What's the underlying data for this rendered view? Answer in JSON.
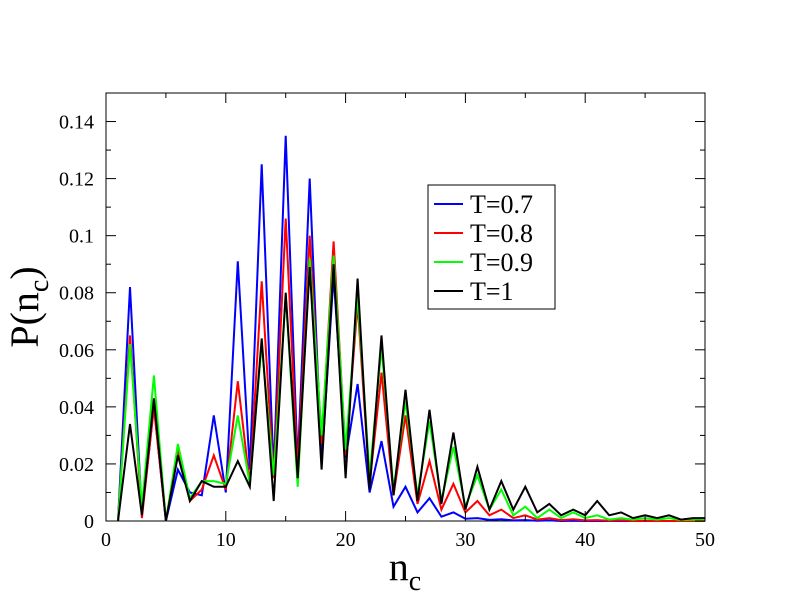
{
  "chart_data": {
    "type": "line",
    "xlabel": {
      "base": "n",
      "sub": "c"
    },
    "ylabel": {
      "prefix": "P(n",
      "sub": "c",
      "suffix": ")"
    },
    "xlim": [
      0,
      50
    ],
    "ylim": [
      0,
      0.15
    ],
    "xticks": [
      0,
      10,
      20,
      30,
      40,
      50
    ],
    "xtick_labels": [
      "0",
      "10",
      "20",
      "30",
      "40",
      "50"
    ],
    "yticks": [
      0,
      0.02,
      0.04,
      0.06,
      0.08,
      0.1,
      0.12,
      0.14
    ],
    "ytick_labels": [
      "0",
      "0.02",
      "0.04",
      "0.06",
      "0.08",
      "0.1",
      "0.12",
      "0.14"
    ],
    "legend_position": "upper-right",
    "grid": false,
    "series": [
      {
        "name": "T=0.7",
        "color": "#0000ff",
        "x": [
          1,
          2,
          3,
          4,
          5,
          6,
          7,
          8,
          9,
          10,
          11,
          12,
          13,
          14,
          15,
          16,
          17,
          18,
          19,
          20,
          21,
          22,
          23,
          24,
          25,
          26,
          27,
          28,
          29,
          30,
          31,
          32,
          33,
          34,
          35,
          36,
          37,
          38,
          39,
          40,
          41,
          42,
          43,
          44,
          45,
          46,
          47,
          48,
          49,
          50
        ],
        "y": [
          0,
          0.082,
          0.002,
          0.04,
          0,
          0.018,
          0.01,
          0.009,
          0.037,
          0.01,
          0.091,
          0.018,
          0.125,
          0.017,
          0.135,
          0.02,
          0.12,
          0.02,
          0.086,
          0.022,
          0.048,
          0.01,
          0.028,
          0.005,
          0.012,
          0.003,
          0.008,
          0.0015,
          0.003,
          0.0008,
          0.001,
          0.0004,
          0.0006,
          0.0002,
          0.0003,
          0.0001,
          0.0002,
          0,
          0.0001,
          0,
          0,
          0,
          0,
          0,
          0,
          0,
          0,
          0,
          0,
          0
        ]
      },
      {
        "name": "T=0.8",
        "color": "#ff0000",
        "x": [
          1,
          2,
          3,
          4,
          5,
          6,
          7,
          8,
          9,
          10,
          11,
          12,
          13,
          14,
          15,
          16,
          17,
          18,
          19,
          20,
          21,
          22,
          23,
          24,
          25,
          26,
          27,
          28,
          29,
          30,
          31,
          32,
          33,
          34,
          35,
          36,
          37,
          38,
          39,
          40,
          41,
          42,
          43,
          44,
          45,
          46,
          47,
          48,
          49,
          50
        ],
        "y": [
          0,
          0.065,
          0.001,
          0.04,
          0,
          0.025,
          0.007,
          0.011,
          0.023,
          0.011,
          0.049,
          0.013,
          0.084,
          0.015,
          0.106,
          0.018,
          0.1,
          0.027,
          0.098,
          0.023,
          0.076,
          0.013,
          0.052,
          0.009,
          0.037,
          0.006,
          0.021,
          0.004,
          0.013,
          0.003,
          0.007,
          0.002,
          0.004,
          0.001,
          0.002,
          0.0005,
          0.001,
          0.0003,
          0.0006,
          0.0002,
          0.0003,
          0.0001,
          0.0002,
          0,
          0.0001,
          0,
          0,
          0,
          0,
          0
        ]
      },
      {
        "name": "T=0.9",
        "color": "#00ff00",
        "x": [
          1,
          2,
          3,
          4,
          5,
          6,
          7,
          8,
          9,
          10,
          11,
          12,
          13,
          14,
          15,
          16,
          17,
          18,
          19,
          20,
          21,
          22,
          23,
          24,
          25,
          26,
          27,
          28,
          29,
          30,
          31,
          32,
          33,
          34,
          35,
          36,
          37,
          38,
          39,
          40,
          41,
          42,
          43,
          44,
          45,
          46,
          47,
          48,
          49,
          50
        ],
        "y": [
          0,
          0.062,
          0.005,
          0.051,
          0,
          0.027,
          0.008,
          0.014,
          0.014,
          0.013,
          0.037,
          0.013,
          0.062,
          0.016,
          0.079,
          0.012,
          0.092,
          0.03,
          0.093,
          0.025,
          0.079,
          0.016,
          0.061,
          0.011,
          0.042,
          0.009,
          0.035,
          0.007,
          0.026,
          0.005,
          0.016,
          0.004,
          0.011,
          0.002,
          0.005,
          0.001,
          0.004,
          0.001,
          0.003,
          0.001,
          0.002,
          0.0005,
          0.001,
          0.0005,
          0.001,
          0.0005,
          0.001,
          0.0003,
          0.0005,
          0.0002
        ]
      },
      {
        "name": "T=1",
        "color": "#000000",
        "x": [
          1,
          2,
          3,
          4,
          5,
          6,
          7,
          8,
          9,
          10,
          11,
          12,
          13,
          14,
          15,
          16,
          17,
          18,
          19,
          20,
          21,
          22,
          23,
          24,
          25,
          26,
          27,
          28,
          29,
          30,
          31,
          32,
          33,
          34,
          35,
          36,
          37,
          38,
          39,
          40,
          41,
          42,
          43,
          44,
          45,
          46,
          47,
          48,
          49,
          50
        ],
        "y": [
          0,
          0.034,
          0.002,
          0.043,
          0,
          0.023,
          0.007,
          0.014,
          0.012,
          0.012,
          0.021,
          0.012,
          0.064,
          0.007,
          0.08,
          0.015,
          0.089,
          0.018,
          0.09,
          0.015,
          0.085,
          0.011,
          0.065,
          0.009,
          0.046,
          0.007,
          0.039,
          0.006,
          0.031,
          0.004,
          0.019,
          0.004,
          0.014,
          0.004,
          0.012,
          0.003,
          0.006,
          0.002,
          0.004,
          0.002,
          0.007,
          0.002,
          0.003,
          0.001,
          0.002,
          0.001,
          0.002,
          0.0005,
          0.001,
          0.001
        ]
      }
    ]
  }
}
